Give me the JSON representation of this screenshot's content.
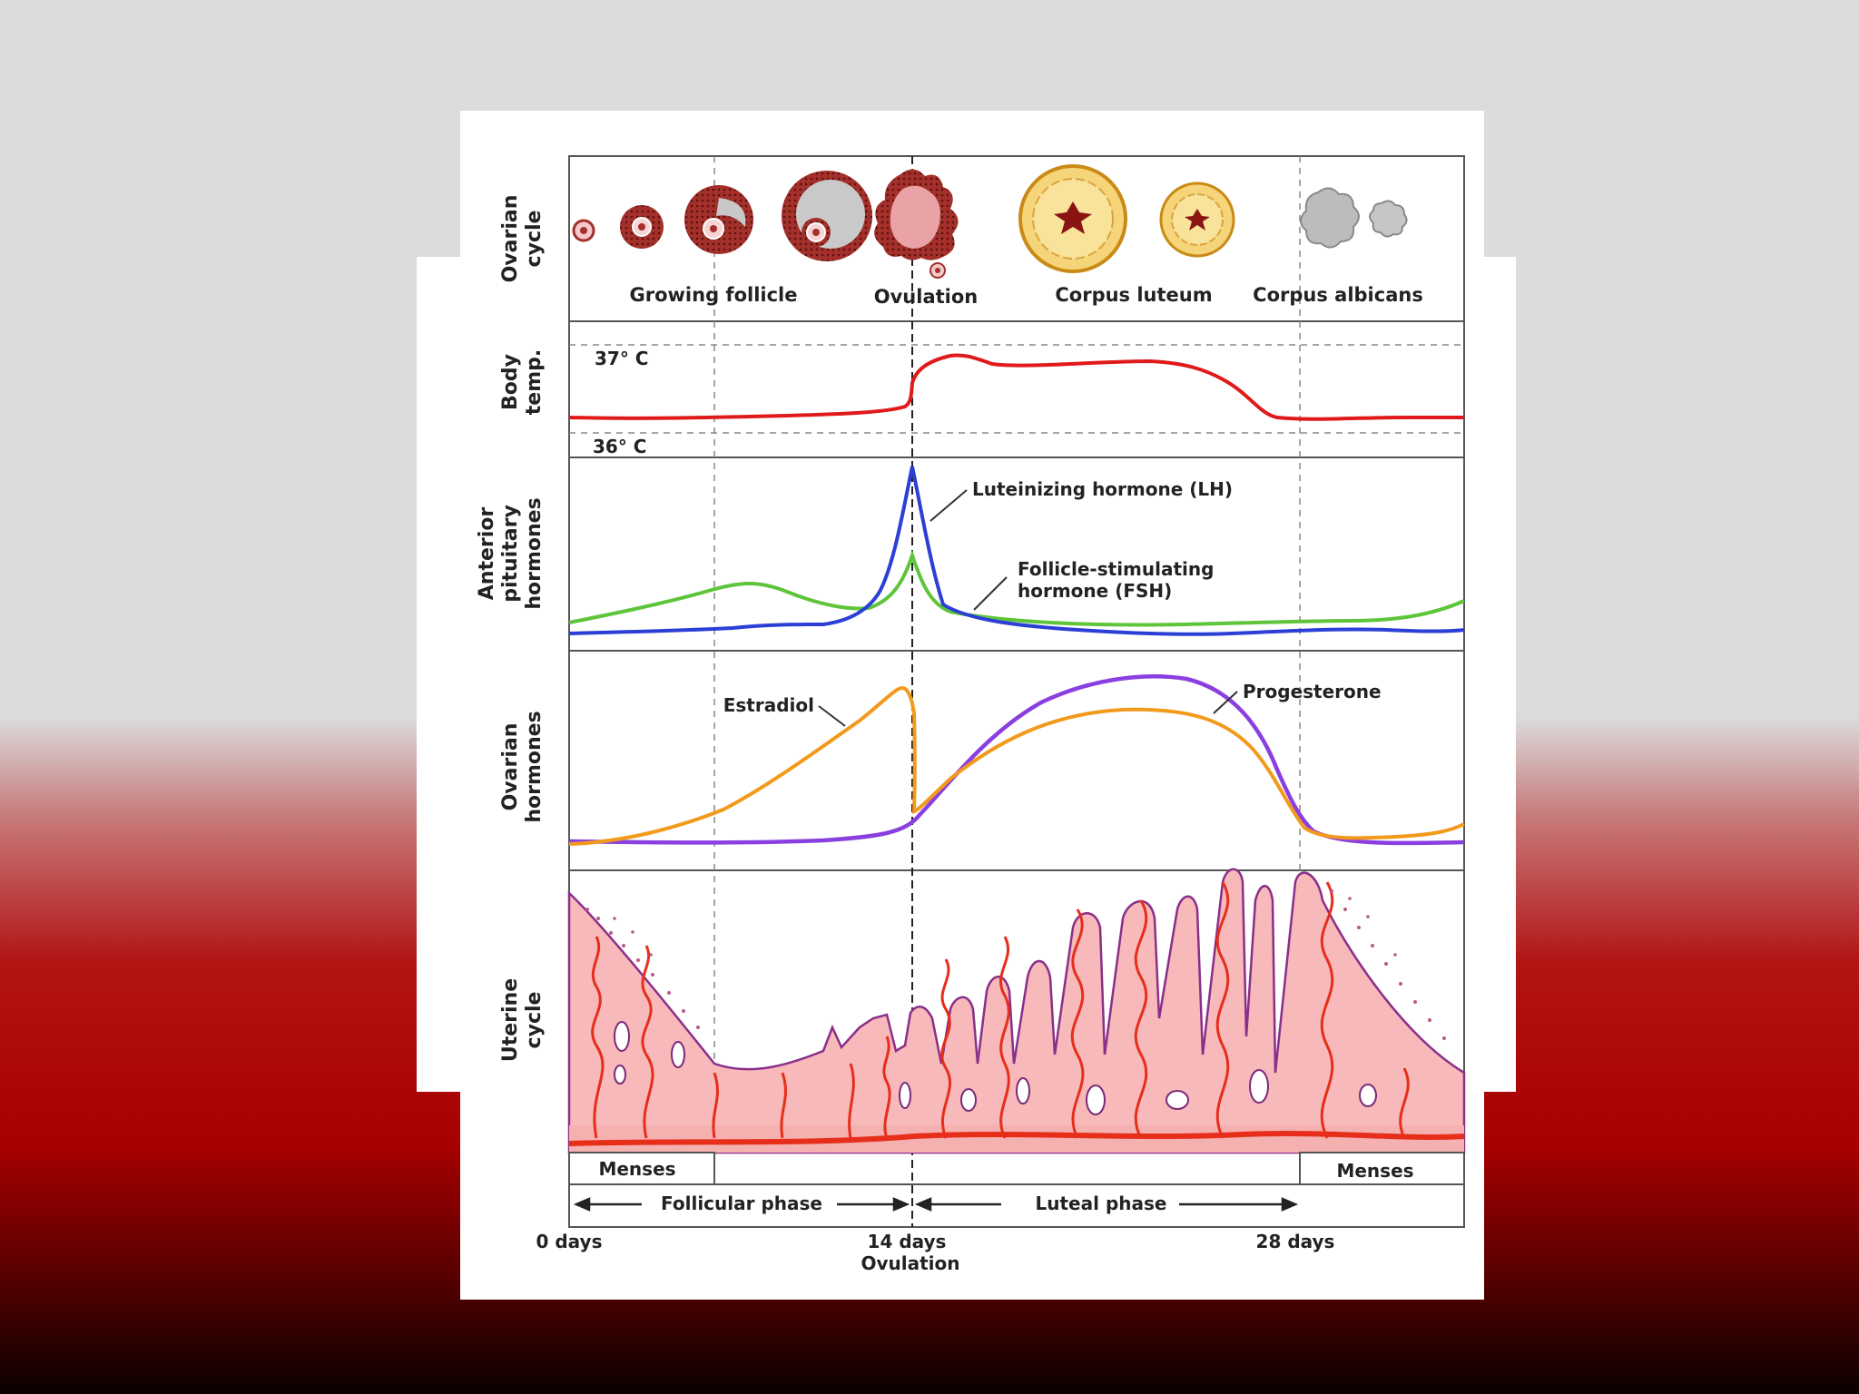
{
  "panels": {
    "ovarian_cycle": {
      "label": [
        "Ovarian",
        "cycle"
      ],
      "stages": [
        "Growing follicle",
        "Ovulation",
        "Corpus luteum",
        "Corpus albicans"
      ]
    },
    "body_temp": {
      "label": [
        "Body",
        "temp."
      ],
      "high_label": "37° C",
      "low_label": "36° C"
    },
    "anterior_pituitary": {
      "label": [
        "Anterior",
        "pituitary",
        "hormones"
      ],
      "lh_label": "Luteinizing hormone (LH)",
      "fsh_label": [
        "Follicle-stimulating",
        "hormone (FSH)"
      ]
    },
    "ovarian_hormones": {
      "label": [
        "Ovarian",
        "hormones"
      ],
      "estradiol_label": "Estradiol",
      "progesterone_label": "Progesterone"
    },
    "uterine_cycle": {
      "label": [
        "Uterine",
        "cycle"
      ],
      "menses_left": "Menses",
      "menses_right": "Menses"
    }
  },
  "phases": {
    "follicular": "Follicular phase",
    "luteal": "Luteal phase"
  },
  "axis": {
    "day0": "0 days",
    "day14": "14 days",
    "ovulation": "Ovulation",
    "day28": "28 days"
  },
  "colors": {
    "temp": "#e01a1a",
    "lh": "#2b3fd6",
    "fsh": "#5ec43a",
    "estradiol": "#f29a1c",
    "progesterone": "#8a3fe0",
    "endometrium": "#f7b9b9",
    "artery": "#e62e1a",
    "gland": "#7a2a7a"
  }
}
